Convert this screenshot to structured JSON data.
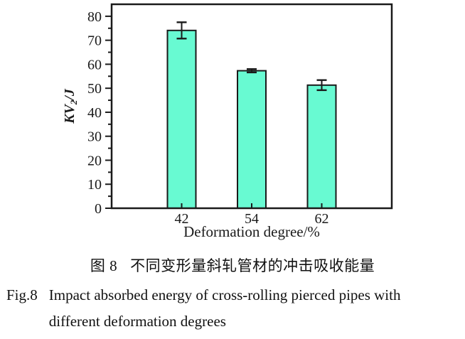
{
  "chart_data": {
    "type": "bar",
    "categories": [
      "42",
      "54",
      "62"
    ],
    "values": [
      74.1,
      57.3,
      51.3
    ],
    "errors": [
      3.4,
      0.7,
      2.1
    ],
    "title": "",
    "xlabel": "Deformation degree/%",
    "ylabel": "KV2/J",
    "ylabel_parts": {
      "main": "KV",
      "sub": "2",
      "rest": "/J"
    },
    "ylim": [
      0,
      85
    ],
    "ytick_major": 10,
    "ytick_minor": 5,
    "ytick_labels": [
      "0",
      "10",
      "20",
      "30",
      "40",
      "50",
      "60",
      "70",
      "80"
    ],
    "grid": false,
    "legend": "none",
    "bar_color": "#68fad2",
    "bar_edge_color": "#1a1a1a",
    "axis_color": "#1a1a1a"
  },
  "captions": {
    "zh_fig_label": "图 8",
    "zh_text": "不同变形量斜轧管材的冲击吸收能量",
    "en_fig_label": "Fig.8",
    "en_line1": "Impact absorbed energy of cross-rolling pierced pipes with",
    "en_line2": "different deformation degrees"
  }
}
